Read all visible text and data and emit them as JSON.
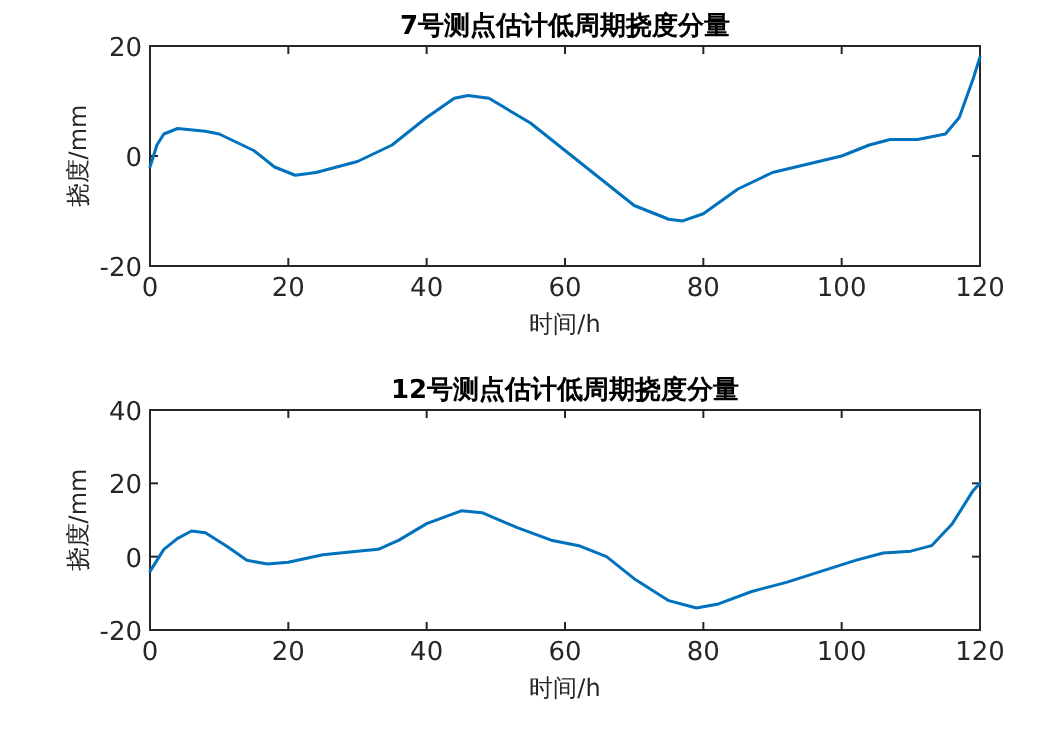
{
  "chart_data": [
    {
      "type": "line",
      "title": "7号测点估计低周期挠度分量",
      "xlabel": "时间/h",
      "ylabel": "挠度/mm",
      "xlim": [
        0,
        120
      ],
      "ylim": [
        -20,
        20
      ],
      "xticks": [
        0,
        20,
        40,
        60,
        80,
        100,
        120
      ],
      "yticks": [
        -20,
        0,
        20
      ],
      "x": [
        0,
        1,
        2,
        4,
        8,
        10,
        15,
        18,
        21,
        24,
        30,
        35,
        40,
        44,
        46,
        49,
        55,
        60,
        65,
        70,
        75,
        77,
        80,
        85,
        90,
        95,
        100,
        104,
        107,
        111,
        115,
        117,
        119,
        120
      ],
      "series": [
        {
          "color": "#0072bd",
          "values": [
            -2,
            2,
            4,
            5,
            4.5,
            4,
            1,
            -2,
            -3.5,
            -3,
            -1,
            2,
            7,
            10.5,
            11,
            10.5,
            6,
            1,
            -4,
            -9,
            -11.5,
            -11.8,
            -10.5,
            -6,
            -3,
            -1.5,
            0,
            2,
            3,
            3,
            4,
            7,
            14,
            18
          ]
        }
      ]
    },
    {
      "type": "line",
      "title": "12号测点估计低周期挠度分量",
      "xlabel": "时间/h",
      "ylabel": "挠度/mm",
      "xlim": [
        0,
        120
      ],
      "ylim": [
        -20,
        40
      ],
      "xticks": [
        0,
        20,
        40,
        60,
        80,
        100,
        120
      ],
      "yticks": [
        -20,
        0,
        20,
        40
      ],
      "x": [
        0,
        2,
        4,
        6,
        8,
        11,
        14,
        17,
        20,
        25,
        30,
        33,
        36,
        40,
        45,
        48,
        53,
        58,
        62,
        66,
        70,
        75,
        79,
        82,
        87,
        92,
        97,
        102,
        106,
        110,
        113,
        116,
        119,
        120
      ],
      "series": [
        {
          "color": "#0072bd",
          "values": [
            -4,
            2,
            5,
            7,
            6.5,
            3,
            -1,
            -2,
            -1.5,
            0.5,
            1.5,
            2,
            4.5,
            9,
            12.5,
            12,
            8,
            4.5,
            3,
            0,
            -6,
            -12,
            -14,
            -13,
            -9.5,
            -7,
            -4,
            -1,
            1,
            1.5,
            3,
            9,
            18,
            20
          ]
        }
      ]
    }
  ]
}
